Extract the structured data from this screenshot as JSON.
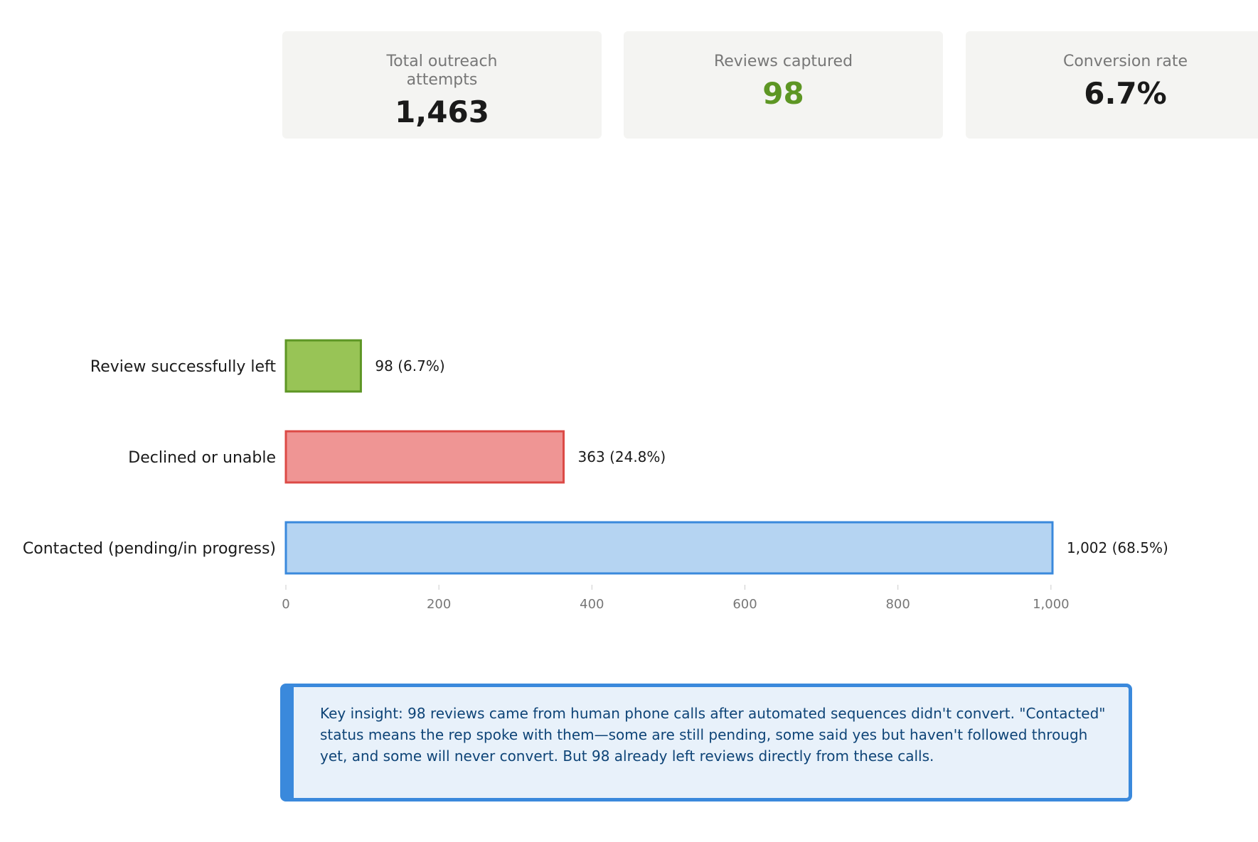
{
  "cards": [
    {
      "label": "Total outreach attempts",
      "value": "1,463",
      "color": "#1a1a1a"
    },
    {
      "label": "Reviews captured",
      "value": "98",
      "color": "#5d9624"
    },
    {
      "label": "Conversion rate",
      "value": "6.7%",
      "color": "#1a1a1a"
    }
  ],
  "chart_data": {
    "type": "bar",
    "orientation": "horizontal",
    "title": "",
    "xlabel": "",
    "ylabel": "",
    "xlim": [
      0,
      1002
    ],
    "xticks": [
      "0",
      "200",
      "400",
      "600",
      "800",
      "1,000"
    ],
    "xtick_values": [
      0,
      200,
      400,
      600,
      800,
      1000
    ],
    "categories": [
      "Review successfully left",
      "Declined or unable",
      "Contacted (pending/in progress)"
    ],
    "values": [
      98,
      363,
      1002
    ],
    "data_labels": [
      "98 (6.7%)",
      "363 (24.8%)",
      "1,002 (68.5%)"
    ],
    "fill_colors": [
      "#98c456",
      "#ef9594",
      "#b5d4f2"
    ],
    "stroke_colors": [
      "#5d9624",
      "#dc4a46",
      "#3a89dc"
    ],
    "grid": false
  },
  "insight": {
    "text": "Key insight: 98 reviews came from human phone calls after automated sequences didn't convert. \"Contacted\" status means the rep spoke with them—some are still pending, some said yes but haven't followed through yet, and some will never convert. But 98 already left reviews directly from these calls."
  }
}
